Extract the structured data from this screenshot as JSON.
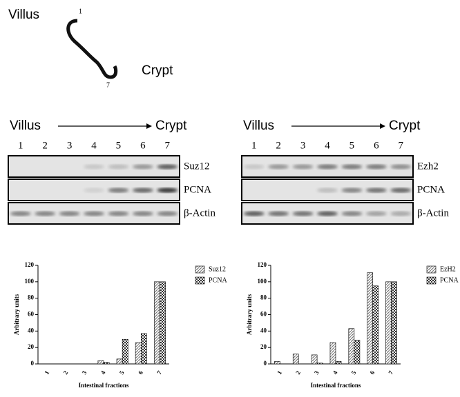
{
  "schematic": {
    "villus": "Villus",
    "top": "1",
    "bottom": "7",
    "crypt": "Crypt"
  },
  "blots": [
    {
      "from": "Villus",
      "to": "Crypt",
      "lanes": [
        "1",
        "2",
        "3",
        "4",
        "5",
        "6",
        "7"
      ],
      "rows": [
        "Suz12",
        "PCNA",
        "β-Actin"
      ]
    },
    {
      "from": "Villus",
      "to": "Crypt",
      "lanes": [
        "1",
        "2",
        "3",
        "4",
        "5",
        "6",
        "7"
      ],
      "rows": [
        "Ezh2",
        "PCNA",
        "β-Actin"
      ]
    }
  ],
  "chart_data": [
    {
      "type": "bar",
      "y_label": "Arbitrary units",
      "x_label": "Intestinal fractions",
      "categories": [
        "1",
        "2",
        "3",
        "4",
        "5",
        "6",
        "7"
      ],
      "series": [
        {
          "name": "Suz12",
          "color": "#777777",
          "values": [
            0,
            0,
            0,
            4,
            6,
            26,
            100
          ]
        },
        {
          "name": "PCNA",
          "color": "#333333",
          "values": [
            0,
            0,
            0,
            2,
            30,
            37,
            100
          ]
        }
      ],
      "ylim": [
        0,
        120
      ],
      "yticks": [
        0,
        20,
        40,
        60,
        80,
        100,
        120
      ],
      "legend": "upper-right"
    },
    {
      "type": "bar",
      "y_label": "Arbitrary units",
      "x_label": "Intestinal fractions",
      "categories": [
        "1",
        "2",
        "3",
        "4",
        "5",
        "6",
        "7"
      ],
      "series": [
        {
          "name": "EzH2",
          "color": "#777777",
          "values": [
            3,
            12,
            11,
            26,
            43,
            111,
            100
          ]
        },
        {
          "name": "PCNA",
          "color": "#333333",
          "values": [
            0,
            0,
            1,
            3,
            29,
            95,
            100
          ]
        }
      ],
      "ylim": [
        0,
        120
      ],
      "yticks": [
        0,
        20,
        40,
        60,
        80,
        100,
        120
      ],
      "legend": "upper-right"
    }
  ]
}
